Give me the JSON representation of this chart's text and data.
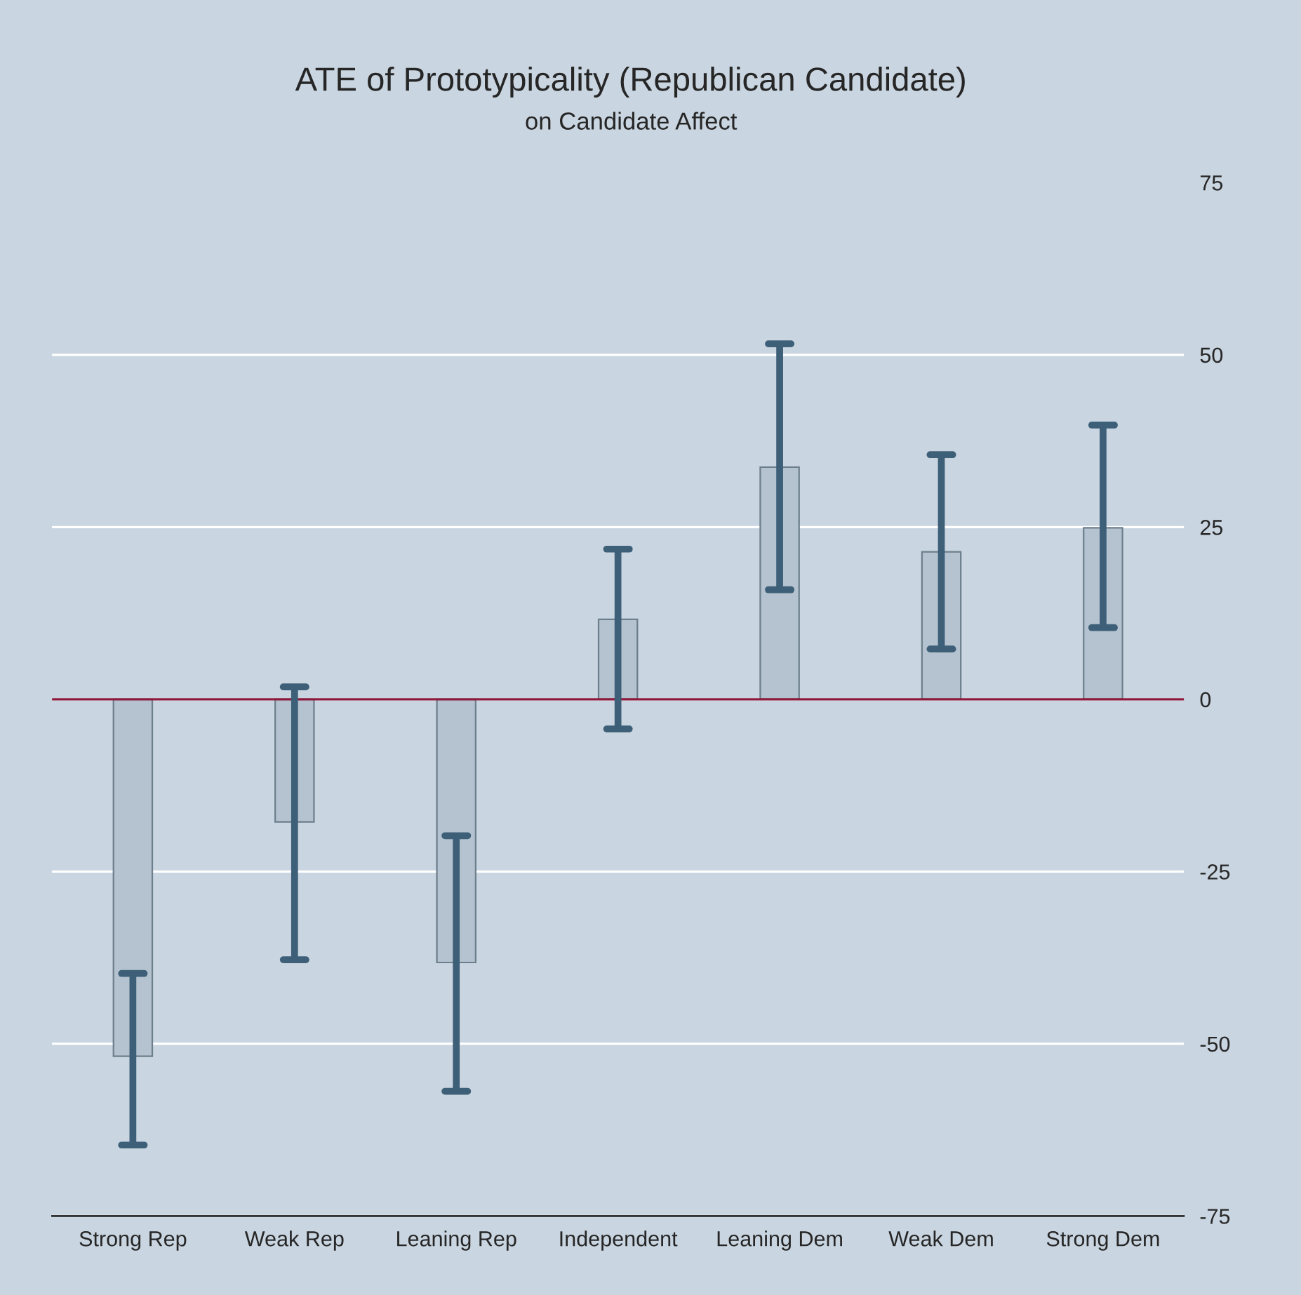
{
  "chart_data": {
    "type": "bar",
    "title": "ATE of Prototypicality (Republican Candidate)",
    "subtitle": "on Candidate Affect",
    "categories": [
      "Strong Rep",
      "Weak Rep",
      "Leaning Rep",
      "Independent",
      "Leaning Dem",
      "Weak Dem",
      "Strong Dem"
    ],
    "series": [
      {
        "color": "#b4c3cf",
        "values": [
          -51.8,
          -17.8,
          -38.2,
          11.6,
          33.7,
          21.4,
          24.9
        ],
        "errors": [
          [
            -64.7,
            -39.8
          ],
          [
            -37.8,
            1.8
          ],
          [
            -56.9,
            -19.8
          ],
          [
            -4.3,
            21.8
          ],
          [
            15.9,
            51.6
          ],
          [
            7.3,
            35.5
          ],
          [
            10.4,
            39.8
          ]
        ]
      }
    ],
    "ylim": [
      -75,
      75
    ],
    "yticks": [
      -75,
      -50,
      -25,
      0,
      25,
      50,
      75
    ],
    "grid": "y",
    "ref_lines": [
      {
        "axis": "y",
        "value": 0,
        "color": "#8b1a3c"
      }
    ]
  }
}
